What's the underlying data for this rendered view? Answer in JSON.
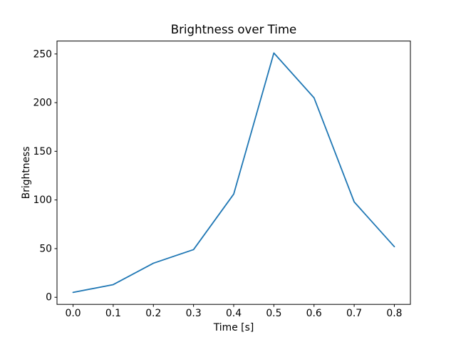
{
  "figure": {
    "background": "#ffffff"
  },
  "chart_data": {
    "type": "line",
    "title": "Brightness over Time",
    "xlabel": "Time [s]",
    "ylabel": "Brightness",
    "x": [
      0.0,
      0.1,
      0.2,
      0.3,
      0.4,
      0.5,
      0.6,
      0.7,
      0.8
    ],
    "series": [
      {
        "name": "Brightness",
        "values": [
          5,
          13,
          35,
          49,
          106,
          251,
          205,
          98,
          52
        ]
      }
    ],
    "xlim": [
      -0.04,
      0.84
    ],
    "ylim": [
      -7.3,
      263.3
    ],
    "xticks": {
      "values": [
        0.0,
        0.1,
        0.2,
        0.3,
        0.4,
        0.5,
        0.6,
        0.7,
        0.8
      ],
      "labels": [
        "0.0",
        "0.1",
        "0.2",
        "0.3",
        "0.4",
        "0.5",
        "0.6",
        "0.7",
        "0.8"
      ]
    },
    "yticks": {
      "values": [
        0,
        50,
        100,
        150,
        200,
        250
      ],
      "labels": [
        "0",
        "50",
        "100",
        "150",
        "200",
        "250"
      ]
    },
    "grid": false,
    "legend": "none",
    "line_color": "#1f77b4",
    "axes_color": "#000000",
    "plot_background": "#ffffff"
  }
}
